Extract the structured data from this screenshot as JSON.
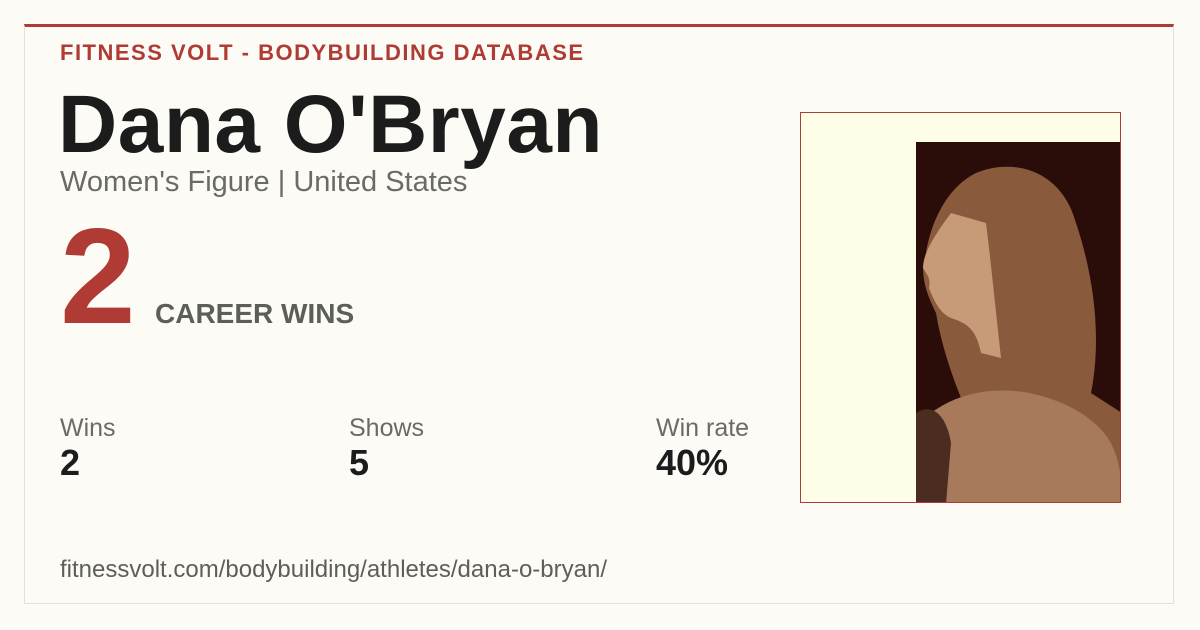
{
  "header": {
    "kicker": "FITNESS VOLT - BODYBUILDING DATABASE",
    "name": "Dana O'Bryan",
    "subtitle": "Women's Figure | United States"
  },
  "highlight": {
    "value": "2",
    "label": "CAREER WINS"
  },
  "stats": [
    {
      "label": "Wins",
      "value": "2"
    },
    {
      "label": "Shows",
      "value": "5"
    },
    {
      "label": "Win rate",
      "value": "40%"
    }
  ],
  "url": "fitnessvolt.com/bodybuilding/athletes/dana-o-bryan/"
}
